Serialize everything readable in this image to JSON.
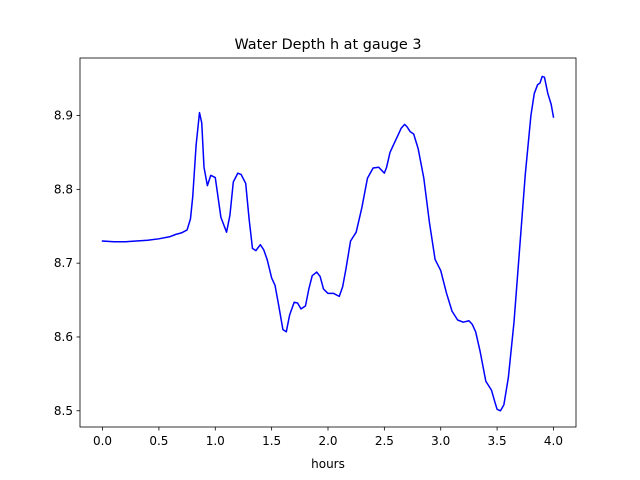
{
  "chart_data": {
    "type": "line",
    "title": "Water Depth h at gauge 3",
    "xlabel": "hours",
    "ylabel": "",
    "xlim": [
      -0.2,
      4.2
    ],
    "ylim": [
      8.478,
      8.978
    ],
    "xticks": [
      0.0,
      0.5,
      1.0,
      1.5,
      2.0,
      2.5,
      3.0,
      3.5,
      4.0
    ],
    "xtick_labels": [
      "0.0",
      "0.5",
      "1.0",
      "1.5",
      "2.0",
      "2.5",
      "3.0",
      "3.5",
      "4.0"
    ],
    "yticks": [
      8.5,
      8.6,
      8.7,
      8.8,
      8.9
    ],
    "ytick_labels": [
      "8.5",
      "8.6",
      "8.7",
      "8.8",
      "8.9"
    ],
    "grid": false,
    "legend": "none",
    "series": [
      {
        "color": "#0000ff",
        "x": [
          0.0,
          0.1,
          0.2,
          0.3,
          0.4,
          0.5,
          0.6,
          0.65,
          0.7,
          0.75,
          0.78,
          0.8,
          0.83,
          0.86,
          0.88,
          0.9,
          0.93,
          0.96,
          1.0,
          1.05,
          1.1,
          1.13,
          1.16,
          1.2,
          1.23,
          1.27,
          1.3,
          1.33,
          1.36,
          1.4,
          1.43,
          1.46,
          1.5,
          1.53,
          1.56,
          1.6,
          1.63,
          1.66,
          1.7,
          1.73,
          1.76,
          1.8,
          1.83,
          1.86,
          1.9,
          1.93,
          1.96,
          2.0,
          2.05,
          2.1,
          2.13,
          2.16,
          2.2,
          2.25,
          2.3,
          2.35,
          2.4,
          2.45,
          2.5,
          2.52,
          2.55,
          2.58,
          2.62,
          2.65,
          2.68,
          2.7,
          2.73,
          2.76,
          2.8,
          2.85,
          2.9,
          2.95,
          3.0,
          3.05,
          3.1,
          3.15,
          3.2,
          3.25,
          3.28,
          3.31,
          3.35,
          3.4,
          3.45,
          3.48,
          3.5,
          3.53,
          3.56,
          3.6,
          3.65,
          3.7,
          3.75,
          3.8,
          3.83,
          3.86,
          3.88,
          3.9,
          3.92,
          3.95,
          3.98,
          4.0
        ],
        "y": [
          8.73,
          8.729,
          8.729,
          8.73,
          8.731,
          8.733,
          8.736,
          8.739,
          8.741,
          8.745,
          8.76,
          8.79,
          8.86,
          8.904,
          8.89,
          8.83,
          8.805,
          8.819,
          8.816,
          8.762,
          8.742,
          8.765,
          8.81,
          8.822,
          8.82,
          8.808,
          8.76,
          8.72,
          8.717,
          8.725,
          8.718,
          8.705,
          8.68,
          8.67,
          8.645,
          8.61,
          8.607,
          8.63,
          8.647,
          8.646,
          8.638,
          8.642,
          8.665,
          8.683,
          8.688,
          8.682,
          8.665,
          8.659,
          8.659,
          8.655,
          8.668,
          8.693,
          8.73,
          8.742,
          8.775,
          8.815,
          8.829,
          8.83,
          8.822,
          8.83,
          8.85,
          8.86,
          8.873,
          8.883,
          8.888,
          8.885,
          8.878,
          8.875,
          8.855,
          8.815,
          8.755,
          8.705,
          8.69,
          8.66,
          8.635,
          8.623,
          8.62,
          8.622,
          8.617,
          8.607,
          8.58,
          8.54,
          8.528,
          8.512,
          8.502,
          8.5,
          8.508,
          8.545,
          8.62,
          8.72,
          8.82,
          8.9,
          8.93,
          8.942,
          8.944,
          8.953,
          8.952,
          8.93,
          8.915,
          8.898
        ]
      }
    ]
  }
}
